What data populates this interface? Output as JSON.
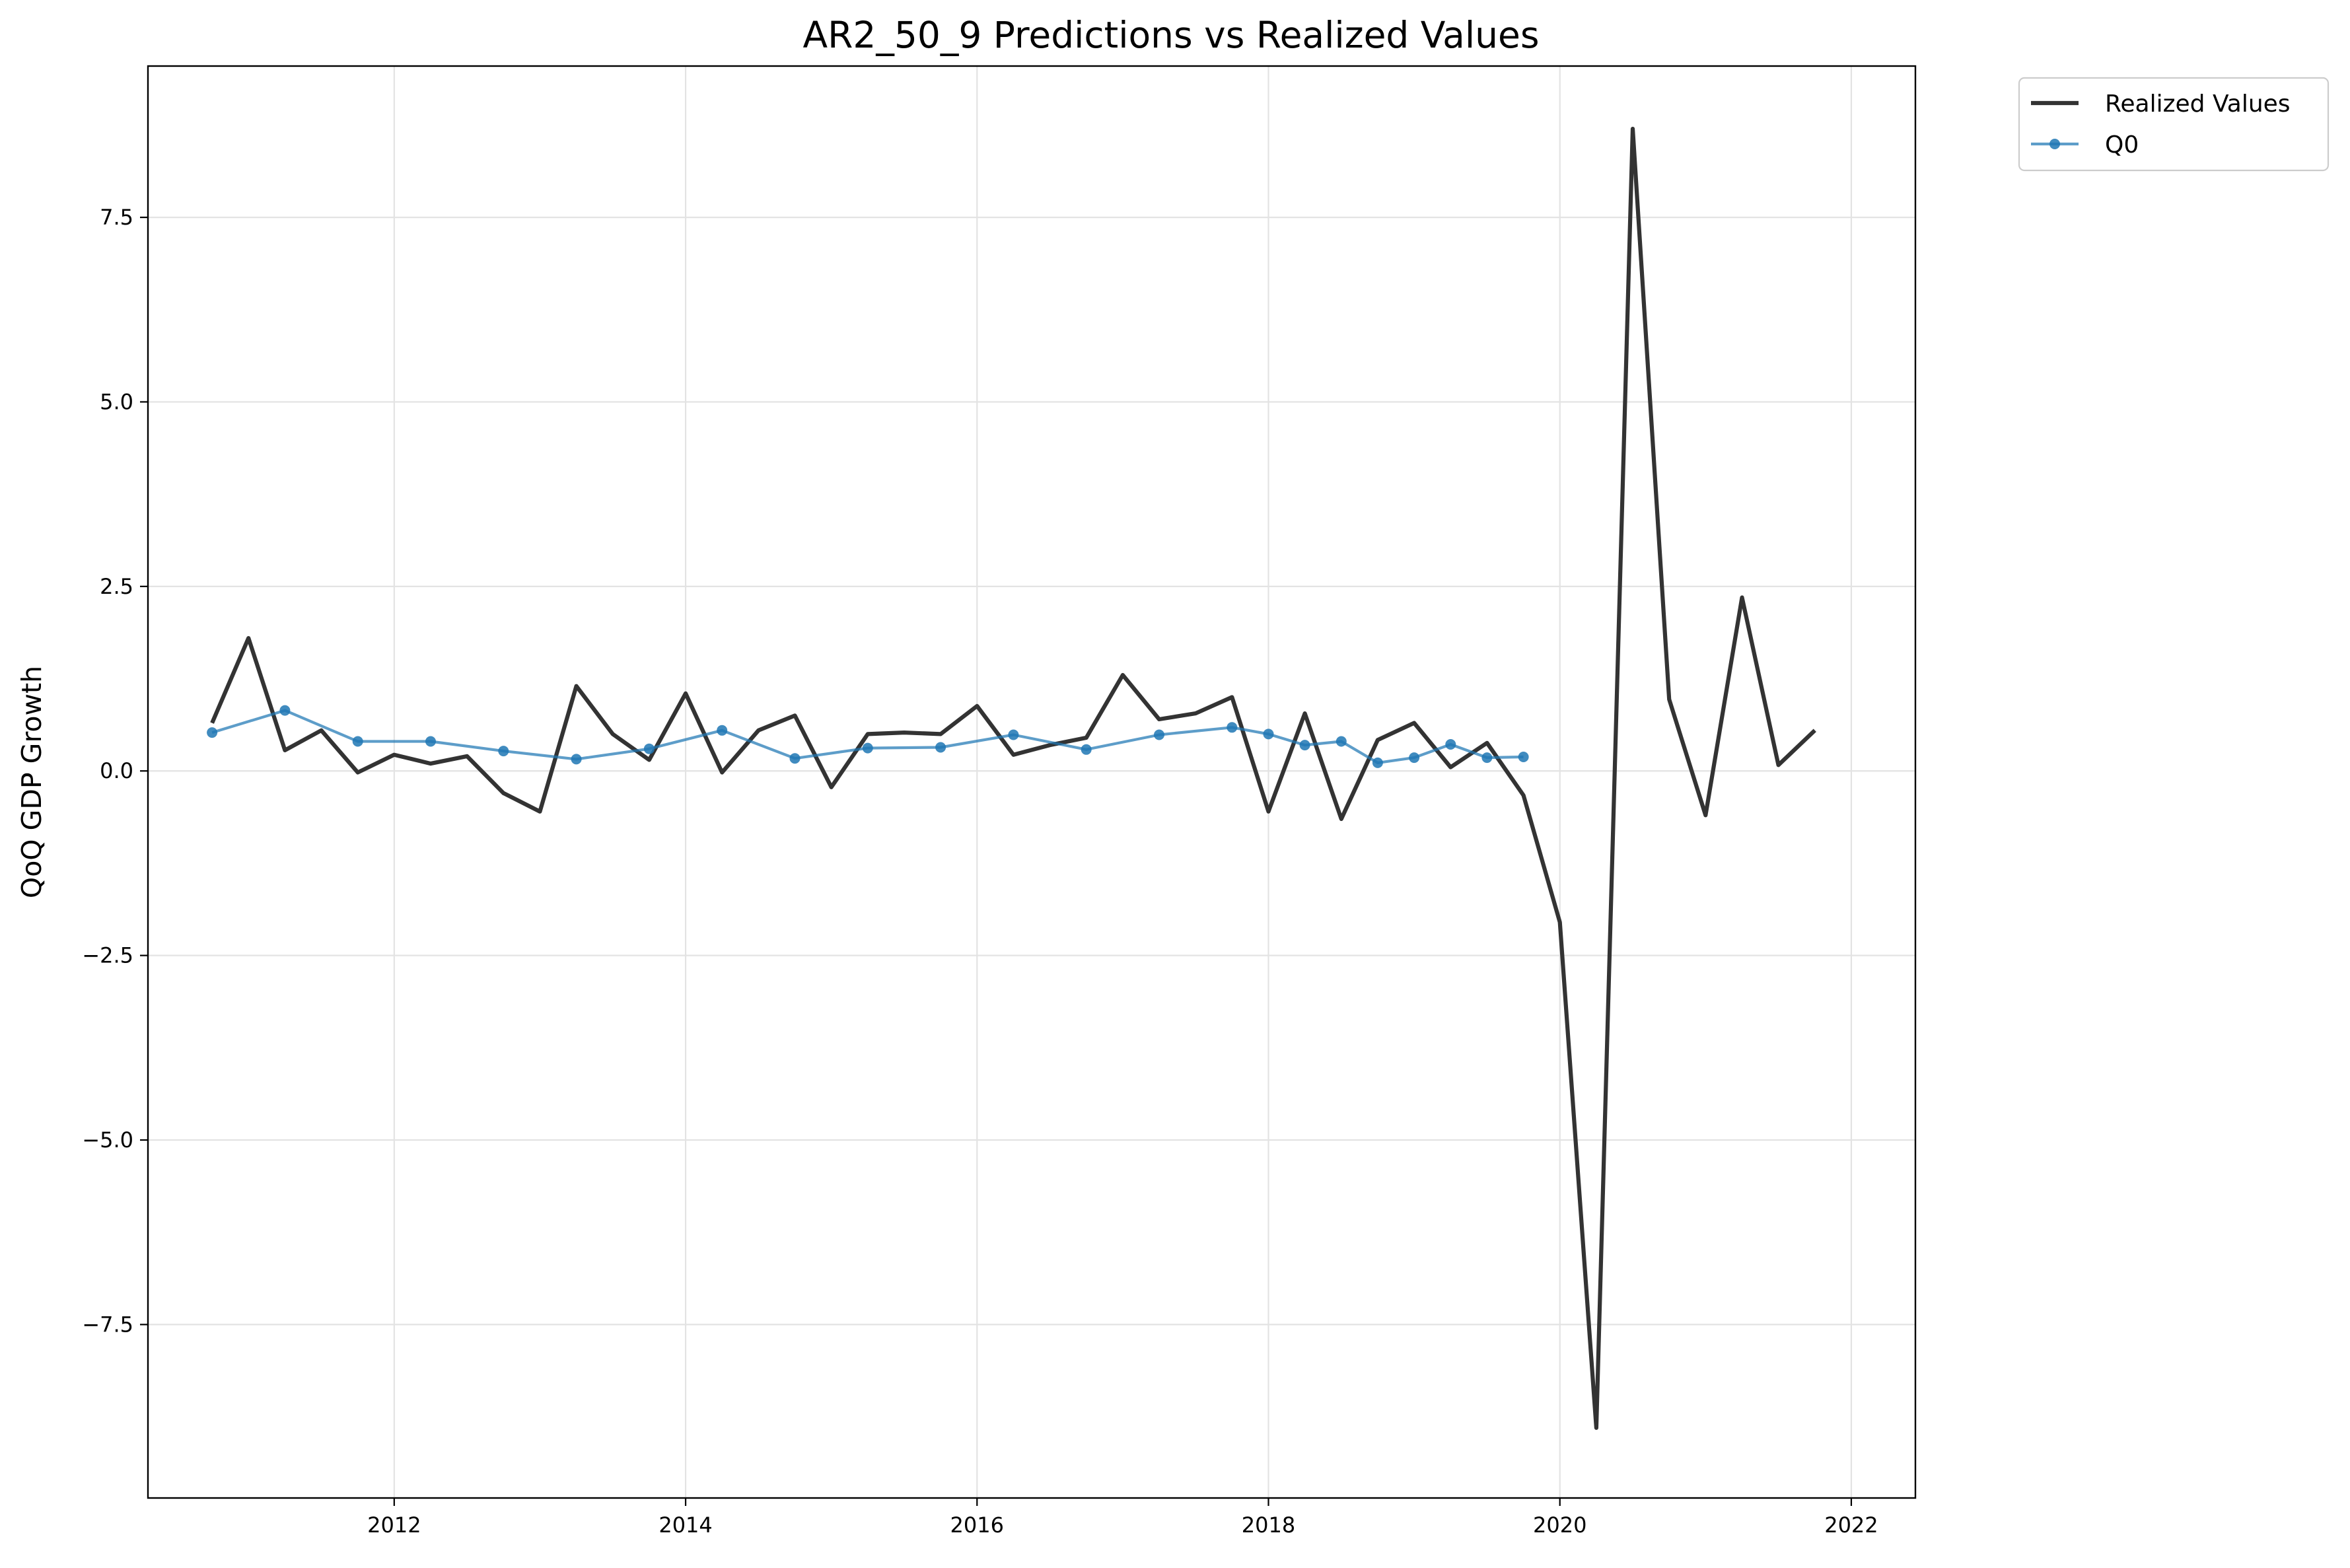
{
  "chart_data": {
    "type": "line",
    "title": "AR2_50_9 Predictions vs Realized Values",
    "xlabel": "",
    "ylabel": "QoQ GDP Growth",
    "xlim": [
      2010.31,
      2022.44
    ],
    "ylim": [
      -9.85,
      9.55
    ],
    "x_ticks": [
      {
        "value": 2012,
        "label": "2012"
      },
      {
        "value": 2014,
        "label": "2014"
      },
      {
        "value": 2016,
        "label": "2016"
      },
      {
        "value": 2018,
        "label": "2018"
      },
      {
        "value": 2020,
        "label": "2020"
      },
      {
        "value": 2022,
        "label": "2022"
      }
    ],
    "y_ticks": [
      {
        "value": -7.5,
        "label": "−7.5"
      },
      {
        "value": -5.0,
        "label": "−5.0"
      },
      {
        "value": -2.5,
        "label": "−2.5"
      },
      {
        "value": 0.0,
        "label": "0.0"
      },
      {
        "value": 2.5,
        "label": "2.5"
      },
      {
        "value": 5.0,
        "label": "5.0"
      },
      {
        "value": 7.5,
        "label": "7.5"
      }
    ],
    "grid": true,
    "legend_position": "outside-top-right",
    "series": [
      {
        "name": "Realized Values",
        "color": "#333333",
        "style": "line",
        "points": [
          [
            2010.75,
            0.65
          ],
          [
            2011.0,
            1.8
          ],
          [
            2011.25,
            0.28
          ],
          [
            2011.5,
            0.55
          ],
          [
            2011.75,
            -0.02
          ],
          [
            2012.0,
            0.22
          ],
          [
            2012.25,
            0.1
          ],
          [
            2012.5,
            0.2
          ],
          [
            2012.75,
            -0.3
          ],
          [
            2013.0,
            -0.55
          ],
          [
            2013.25,
            1.15
          ],
          [
            2013.5,
            0.5
          ],
          [
            2013.75,
            0.15
          ],
          [
            2014.0,
            1.05
          ],
          [
            2014.25,
            -0.02
          ],
          [
            2014.5,
            0.55
          ],
          [
            2014.75,
            0.75
          ],
          [
            2015.0,
            -0.22
          ],
          [
            2015.25,
            0.5
          ],
          [
            2015.5,
            0.52
          ],
          [
            2015.75,
            0.5
          ],
          [
            2016.0,
            0.88
          ],
          [
            2016.25,
            0.22
          ],
          [
            2016.5,
            0.35
          ],
          [
            2016.75,
            0.45
          ],
          [
            2017.0,
            1.3
          ],
          [
            2017.25,
            0.7
          ],
          [
            2017.5,
            0.78
          ],
          [
            2017.75,
            1.0
          ],
          [
            2018.0,
            -0.55
          ],
          [
            2018.25,
            0.78
          ],
          [
            2018.5,
            -0.65
          ],
          [
            2018.75,
            0.42
          ],
          [
            2019.0,
            0.65
          ],
          [
            2019.25,
            0.05
          ],
          [
            2019.5,
            0.38
          ],
          [
            2019.75,
            -0.33
          ],
          [
            2020.0,
            -2.05
          ],
          [
            2020.25,
            -8.9
          ],
          [
            2020.5,
            8.7
          ],
          [
            2020.75,
            0.97
          ],
          [
            2021.0,
            -0.6
          ],
          [
            2021.25,
            2.35
          ],
          [
            2021.5,
            0.08
          ],
          [
            2021.75,
            0.55
          ]
        ]
      },
      {
        "name": "Q0",
        "color": "#1f77b4",
        "style": "line-marker",
        "points": [
          [
            2010.75,
            0.52
          ],
          [
            2011.25,
            0.82
          ],
          [
            2011.75,
            0.4
          ],
          [
            2012.25,
            0.4
          ],
          [
            2012.75,
            0.27
          ],
          [
            2013.25,
            0.16
          ],
          [
            2013.75,
            0.3
          ],
          [
            2014.25,
            0.55
          ],
          [
            2014.75,
            0.17
          ],
          [
            2015.25,
            0.31
          ],
          [
            2015.75,
            0.32
          ],
          [
            2016.25,
            0.49
          ],
          [
            2016.75,
            0.29
          ],
          [
            2017.25,
            0.49
          ],
          [
            2017.75,
            0.59
          ],
          [
            2018.0,
            0.5
          ],
          [
            2018.25,
            0.35
          ],
          [
            2018.5,
            0.4
          ],
          [
            2018.75,
            0.11
          ],
          [
            2019.0,
            0.18
          ],
          [
            2019.25,
            0.36
          ],
          [
            2019.5,
            0.18
          ],
          [
            2019.75,
            0.19
          ]
        ]
      }
    ]
  }
}
